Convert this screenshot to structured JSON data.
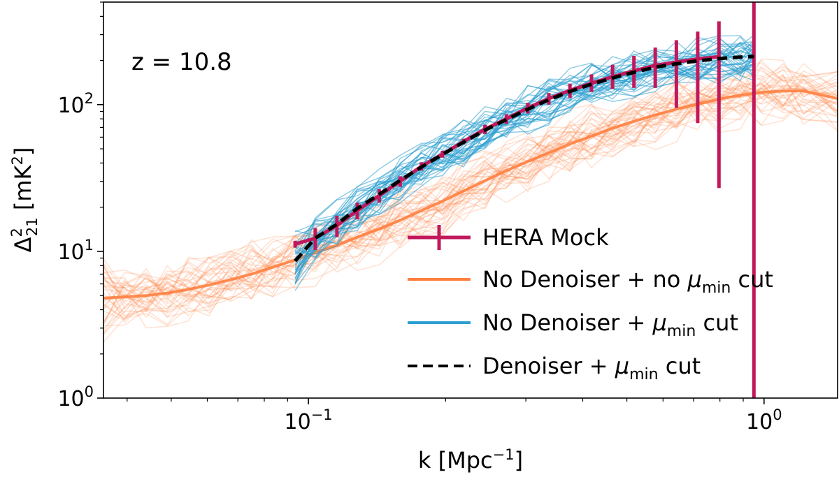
{
  "chart_data": {
    "type": "line",
    "annotation": "z = 10.8",
    "xlabel": {
      "base": "k [Mpc",
      "sup": "−1",
      "tail": "]"
    },
    "ylabel": {
      "base": "Δ",
      "sup": "2",
      "sub": "21",
      "unit_pre": " [mK",
      "unit_sup": "2",
      "unit_post": "]"
    },
    "xscale": "log",
    "yscale": "log",
    "xlim": [
      0.0355,
      1.45
    ],
    "ylim": [
      1,
      500
    ],
    "x_ticks": [
      {
        "value": 0.1,
        "base": "10",
        "exp": "−1"
      },
      {
        "value": 1,
        "base": "10",
        "exp": "0"
      }
    ],
    "y_ticks": [
      {
        "value": 1,
        "base": "10",
        "exp": "0"
      },
      {
        "value": 10,
        "base": "10",
        "exp": "1"
      },
      {
        "value": 100,
        "base": "10",
        "exp": "2"
      }
    ],
    "legend": [
      {
        "key": "hera",
        "label": "HERA Mock",
        "label_parts": [
          "HERA Mock"
        ],
        "color": "#c2185b"
      },
      {
        "key": "orange",
        "label": "No Denoiser + no μmin cut",
        "label_parts": [
          "No Denoiser + no ",
          "μ",
          "min",
          " cut"
        ],
        "color": "#ff7f3f"
      },
      {
        "key": "blue",
        "label": "No Denoiser + μmin cut",
        "label_parts": [
          "No Denoiser + ",
          "μ",
          "min",
          " cut"
        ],
        "color": "#2b9fd0"
      },
      {
        "key": "denoiser",
        "label": "Denoiser + μmin cut",
        "label_parts": [
          "Denoiser + ",
          "μ",
          "min",
          " cut"
        ],
        "color": "#000000"
      }
    ],
    "series": [
      {
        "name": "HERA Mock",
        "style": "errorbar",
        "color": "#c2185b",
        "x": [
          0.0935,
          0.1035,
          0.1155,
          0.128,
          0.143,
          0.159,
          0.177,
          0.197,
          0.219,
          0.244,
          0.272,
          0.303,
          0.337,
          0.375,
          0.418,
          0.465,
          0.518,
          0.577,
          0.642,
          0.715,
          0.796,
          0.95
        ],
        "y": [
          11.2,
          12.3,
          15,
          19,
          24,
          30,
          38,
          46,
          56,
          68,
          80,
          95,
          110,
          125,
          140,
          155,
          170,
          185,
          195,
          205,
          212,
          150
        ],
        "err_low": [
          10.6,
          10.2,
          12.5,
          16.5,
          21.5,
          27.5,
          35.5,
          43.5,
          53.5,
          63,
          74,
          87,
          100,
          111,
          122,
          128,
          130,
          130,
          95,
          75,
          27,
          1
        ],
        "err_high": [
          11.8,
          14.4,
          17.5,
          21.5,
          26.5,
          32.5,
          40.5,
          48.5,
          58.5,
          73,
          86,
          103,
          120,
          139,
          161,
          187,
          215,
          245,
          275,
          315,
          370,
          500
        ]
      },
      {
        "name": "Denoiser + μmin cut",
        "style": "dashed",
        "color": "#000000",
        "x": [
          0.0935,
          0.1035,
          0.1155,
          0.128,
          0.143,
          0.159,
          0.177,
          0.197,
          0.219,
          0.244,
          0.272,
          0.303,
          0.337,
          0.375,
          0.418,
          0.465,
          0.518,
          0.577,
          0.642,
          0.715,
          0.796,
          0.886,
          0.95
        ],
        "y": [
          8.6,
          12.3,
          15.3,
          19.6,
          24.5,
          30.5,
          37.5,
          45.8,
          55.5,
          67,
          79,
          93,
          108,
          123,
          138,
          152,
          166,
          180,
          190,
          199,
          206,
          211,
          213
        ]
      },
      {
        "name": "No Denoiser + μmin cut",
        "style": "ensemble",
        "color": "#2b9fd0",
        "x": [
          0.0935,
          0.1035,
          0.1155,
          0.128,
          0.143,
          0.159,
          0.177,
          0.197,
          0.219,
          0.244,
          0.272,
          0.303,
          0.337,
          0.375,
          0.418,
          0.465,
          0.518,
          0.577,
          0.642,
          0.715,
          0.796,
          0.886,
          0.95
        ],
        "y": [
          8.8,
          12.2,
          15.4,
          20,
          25,
          31,
          38,
          46,
          56,
          67,
          79,
          93,
          108,
          123,
          138,
          152,
          166,
          180,
          190,
          199,
          206,
          211,
          213
        ],
        "spread": 0.2,
        "n_realizations": 40
      },
      {
        "name": "No Denoiser + no μmin cut",
        "style": "ensemble",
        "color": "#ff7f3f",
        "x": [
          0.0355,
          0.0395,
          0.044,
          0.049,
          0.0545,
          0.0605,
          0.0675,
          0.075,
          0.0835,
          0.093,
          0.1035,
          0.1155,
          0.128,
          0.143,
          0.159,
          0.177,
          0.197,
          0.219,
          0.244,
          0.272,
          0.303,
          0.337,
          0.375,
          0.418,
          0.465,
          0.518,
          0.577,
          0.642,
          0.715,
          0.796,
          0.886,
          0.986,
          1.1,
          1.22,
          1.45
        ],
        "y": [
          4.8,
          4.9,
          5,
          5.2,
          5.5,
          5.9,
          6.4,
          7,
          7.8,
          8.7,
          9.8,
          11,
          12.5,
          14.2,
          16.3,
          19,
          22,
          25.8,
          30.3,
          35.5,
          41,
          47,
          54,
          61,
          69,
          77,
          85,
          93,
          101,
          109,
          116,
          121,
          124,
          124,
          110
        ],
        "spread": 0.28,
        "n_realizations": 40
      }
    ]
  }
}
